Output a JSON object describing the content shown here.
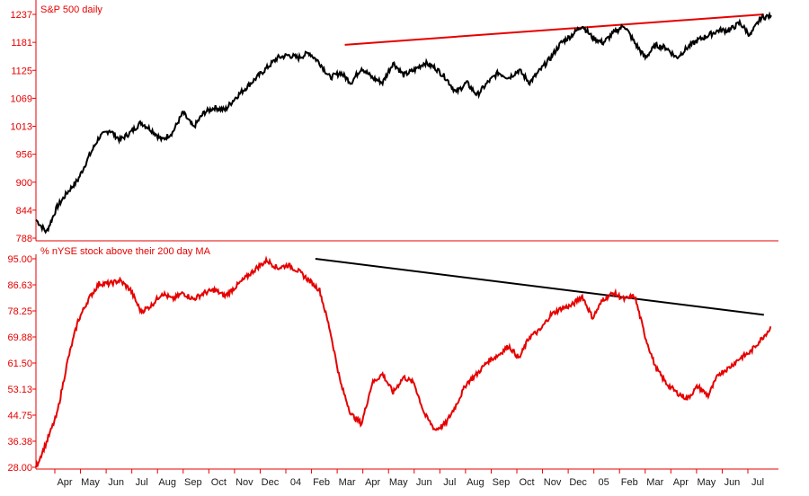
{
  "chart_data": [
    {
      "type": "line",
      "title": "S&P 500 daily",
      "ylim": [
        788,
        1237
      ],
      "y_ticks": [
        "1237",
        "1181",
        "1125",
        "1069",
        "1013",
        "956",
        "900",
        "844",
        "788"
      ],
      "colors": {
        "series": "#000000",
        "trendline": "#e60000",
        "axis_text": "#e60000"
      },
      "series": [
        {
          "values": [
            825,
            800,
            850,
            880,
            905,
            950,
            990,
            1005,
            985,
            1000,
            1020,
            1005,
            985,
            1000,
            1040,
            1010,
            1040,
            1050,
            1045,
            1070,
            1090,
            1110,
            1130,
            1150,
            1155,
            1150,
            1160,
            1140,
            1110,
            1120,
            1100,
            1130,
            1110,
            1100,
            1140,
            1115,
            1125,
            1140,
            1130,
            1110,
            1080,
            1100,
            1075,
            1100,
            1120,
            1110,
            1125,
            1100,
            1125,
            1150,
            1180,
            1195,
            1215,
            1190,
            1180,
            1200,
            1215,
            1180,
            1150,
            1175,
            1170,
            1150,
            1170,
            1185,
            1195,
            1205,
            1205,
            1220,
            1195,
            1230,
            1235
          ]
        }
      ],
      "trendlines": [
        {
          "color": "#e60000",
          "from": [
            0.42,
            1176
          ],
          "to": [
            0.99,
            1237
          ]
        }
      ]
    },
    {
      "type": "line",
      "title": "% nYSE stock above their 200 day MA",
      "ylim": [
        28.0,
        95.0
      ],
      "y_ticks": [
        "95.00",
        "86.63",
        "78.25",
        "69.88",
        "61.50",
        "53.13",
        "44.75",
        "36.38",
        "28.00"
      ],
      "colors": {
        "series": "#e60000",
        "trendline": "#000000",
        "axis_text": "#e60000"
      },
      "series": [
        {
          "values": [
            28,
            36,
            45,
            62,
            75,
            82,
            87,
            87,
            88,
            85,
            78,
            80,
            84,
            82,
            84,
            82,
            84,
            85,
            83,
            86,
            89,
            92,
            94.5,
            92,
            93,
            91,
            88,
            85,
            72,
            55,
            45,
            42,
            55,
            58,
            52,
            57,
            55,
            45,
            40,
            42,
            48,
            55,
            58,
            62,
            64,
            67,
            63,
            70,
            72,
            77,
            79,
            80,
            83,
            76,
            82,
            84,
            82,
            83,
            70,
            60,
            55,
            52,
            50,
            54,
            51,
            58,
            60,
            63,
            65,
            69,
            73
          ]
        }
      ],
      "trendlines": [
        {
          "color": "#000000",
          "from": [
            0.38,
            95.0
          ],
          "to": [
            0.99,
            77.0
          ]
        }
      ]
    }
  ],
  "x_labels": [
    "Apr",
    "May",
    "Jun",
    "Jul",
    "Aug",
    "Sep",
    "Oct",
    "Nov",
    "Dec",
    "04",
    "Feb",
    "Mar",
    "Apr",
    "May",
    "Jun",
    "Jul",
    "Aug",
    "Sep",
    "Oct",
    "Nov",
    "Dec",
    "05",
    "Feb",
    "Mar",
    "Apr",
    "May",
    "Jun",
    "Jul"
  ]
}
